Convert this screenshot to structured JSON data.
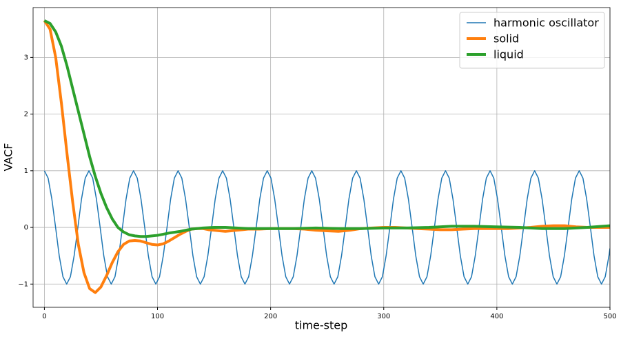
{
  "chart_data": {
    "type": "line",
    "xlabel": "time-step",
    "ylabel": "VACF",
    "xlim": [
      -10,
      500
    ],
    "ylim": [
      -1.41,
      3.88
    ],
    "xticks": [
      0,
      100,
      200,
      300,
      400,
      500
    ],
    "yticks": [
      {
        "value": -1,
        "label": "−1"
      },
      0,
      1,
      2,
      3
    ],
    "grid": true,
    "legend": "upper right",
    "series": [
      {
        "name": "harmonic oscillator",
        "color": "#1f77b4",
        "linewidth": 1.5,
        "x": [
          0,
          3.3,
          6.6,
          9.9,
          13.1,
          16.4,
          19.7,
          23,
          26.3,
          29.6,
          32.8,
          36.1,
          39.4,
          42.7,
          46,
          49.3,
          52.5,
          55.8,
          59.1,
          62.4,
          65.7,
          69,
          72.2,
          75.5,
          78.8,
          82.1,
          85.4,
          88.7,
          91.9,
          95.2,
          98.5,
          101.8,
          105.1,
          108.4,
          111.6,
          114.9,
          118.2,
          121.5,
          124.8,
          128.1,
          131.3,
          134.6,
          137.9,
          141.2,
          144.5,
          147.8,
          151,
          154.3,
          157.6,
          160.9,
          164.2,
          167.5,
          170.7,
          174,
          177.3,
          180.6,
          183.9,
          187.2,
          190.4,
          193.7,
          197,
          200.3,
          203.6,
          206.9,
          210.1,
          213.4,
          216.7,
          220,
          223.3,
          226.6,
          229.8,
          233.1,
          236.4,
          239.7,
          243,
          246.3,
          249.5,
          252.8,
          256.1,
          259.4,
          262.7,
          266,
          269.2,
          272.5,
          275.8,
          279.1,
          282.4,
          285.7,
          288.9,
          292.2,
          295.5,
          298.8,
          302.1,
          305.4,
          308.6,
          311.9,
          315.2,
          318.5,
          321.8,
          325.1,
          328.3,
          331.6,
          334.9,
          338.2,
          341.5,
          344.8,
          348,
          351.3,
          354.6,
          357.9,
          361.2,
          364.5,
          367.7,
          371,
          374.3,
          377.6,
          380.9,
          384.2,
          387.4,
          390.7,
          394,
          397.3,
          400.6,
          403.9,
          407.1,
          410.4,
          413.7,
          417,
          420.3,
          423.6,
          426.8,
          430.1,
          433.4,
          436.7,
          440,
          443.3,
          446.5,
          449.8,
          453.1,
          456.4,
          459.7,
          463,
          466.2,
          469.5,
          472.8,
          476.1,
          479.4,
          482.7,
          485.9,
          489.2,
          492.5,
          495.8,
          499.1,
          500
        ],
        "values": [
          1,
          0.87,
          0.5,
          0,
          -0.5,
          -0.87,
          -1,
          -0.87,
          -0.5,
          0,
          0.5,
          0.87,
          1,
          0.87,
          0.5,
          0,
          -0.5,
          -0.87,
          -1,
          -0.87,
          -0.5,
          0,
          0.5,
          0.87,
          1,
          0.87,
          0.5,
          0,
          -0.5,
          -0.87,
          -1,
          -0.87,
          -0.5,
          0,
          0.5,
          0.87,
          1,
          0.87,
          0.5,
          0,
          -0.5,
          -0.87,
          -1,
          -0.87,
          -0.5,
          0,
          0.5,
          0.87,
          1,
          0.87,
          0.5,
          0,
          -0.5,
          -0.87,
          -1,
          -0.87,
          -0.5,
          0,
          0.5,
          0.87,
          1,
          0.87,
          0.5,
          0,
          -0.5,
          -0.87,
          -1,
          -0.87,
          -0.5,
          0,
          0.5,
          0.87,
          1,
          0.87,
          0.5,
          0,
          -0.5,
          -0.87,
          -1,
          -0.87,
          -0.5,
          0,
          0.5,
          0.87,
          1,
          0.87,
          0.5,
          0,
          -0.5,
          -0.87,
          -1,
          -0.87,
          -0.5,
          0,
          0.5,
          0.87,
          1,
          0.87,
          0.5,
          0,
          -0.5,
          -0.87,
          -1,
          -0.87,
          -0.5,
          0,
          0.5,
          0.87,
          1,
          0.87,
          0.5,
          0,
          -0.5,
          -0.87,
          -1,
          -0.87,
          -0.5,
          0,
          0.5,
          0.87,
          1,
          0.87,
          0.5,
          0,
          -0.5,
          -0.87,
          -1,
          -0.87,
          -0.5,
          0,
          0.5,
          0.87,
          1,
          0.87,
          0.5,
          0,
          -0.5,
          -0.87,
          -1,
          -0.87,
          -0.5,
          0,
          0.5,
          0.87,
          1,
          0.87,
          0.5,
          0,
          -0.5,
          -0.87,
          -1,
          -0.87,
          -0.5,
          -0.37
        ]
      },
      {
        "name": "solid",
        "color": "#ff7f0e",
        "linewidth": 4,
        "x": [
          0,
          5,
          10,
          15,
          20,
          25,
          30,
          35,
          40,
          45,
          50,
          55,
          60,
          65,
          70,
          75,
          80,
          85,
          90,
          95,
          100,
          105,
          110,
          115,
          120,
          125,
          130,
          135,
          140,
          145,
          150,
          155,
          160,
          165,
          170,
          175,
          180,
          190,
          200,
          210,
          220,
          230,
          240,
          250,
          260,
          270,
          280,
          290,
          300,
          310,
          320,
          330,
          340,
          350,
          360,
          370,
          380,
          390,
          400,
          410,
          420,
          430,
          440,
          450,
          460,
          470,
          480,
          490,
          500
        ],
        "values": [
          3.65,
          3.5,
          3.0,
          2.2,
          1.3,
          0.45,
          -0.3,
          -0.8,
          -1.08,
          -1.15,
          -1.05,
          -0.85,
          -0.62,
          -0.43,
          -0.3,
          -0.24,
          -0.23,
          -0.24,
          -0.27,
          -0.3,
          -0.31,
          -0.29,
          -0.24,
          -0.18,
          -0.12,
          -0.07,
          -0.03,
          -0.02,
          -0.02,
          -0.04,
          -0.05,
          -0.06,
          -0.07,
          -0.06,
          -0.05,
          -0.04,
          -0.03,
          -0.03,
          -0.02,
          -0.02,
          -0.02,
          -0.03,
          -0.05,
          -0.06,
          -0.07,
          -0.05,
          -0.02,
          -0.01,
          0,
          0,
          -0.01,
          -0.02,
          -0.03,
          -0.04,
          -0.04,
          -0.03,
          -0.02,
          -0.02,
          -0.02,
          -0.02,
          -0.01,
          0,
          0.02,
          0.03,
          0.03,
          0.01,
          0,
          0,
          0
        ]
      },
      {
        "name": "liquid",
        "color": "#2ca02c",
        "linewidth": 4,
        "x": [
          0,
          5,
          10,
          15,
          20,
          25,
          30,
          35,
          40,
          45,
          50,
          55,
          60,
          65,
          70,
          75,
          80,
          85,
          90,
          95,
          100,
          110,
          120,
          130,
          140,
          150,
          160,
          170,
          180,
          190,
          200,
          220,
          240,
          260,
          280,
          300,
          320,
          340,
          360,
          380,
          400,
          420,
          440,
          460,
          480,
          500
        ],
        "values": [
          3.65,
          3.6,
          3.45,
          3.2,
          2.85,
          2.45,
          2.05,
          1.65,
          1.25,
          0.9,
          0.6,
          0.35,
          0.15,
          0,
          -0.08,
          -0.13,
          -0.15,
          -0.16,
          -0.16,
          -0.15,
          -0.14,
          -0.1,
          -0.07,
          -0.03,
          -0.01,
          0,
          0,
          -0.01,
          -0.02,
          -0.02,
          -0.02,
          -0.02,
          -0.01,
          -0.02,
          -0.02,
          -0.01,
          -0.01,
          0,
          0.02,
          0.02,
          0.01,
          0,
          -0.02,
          -0.02,
          0,
          0.03
        ]
      }
    ]
  }
}
